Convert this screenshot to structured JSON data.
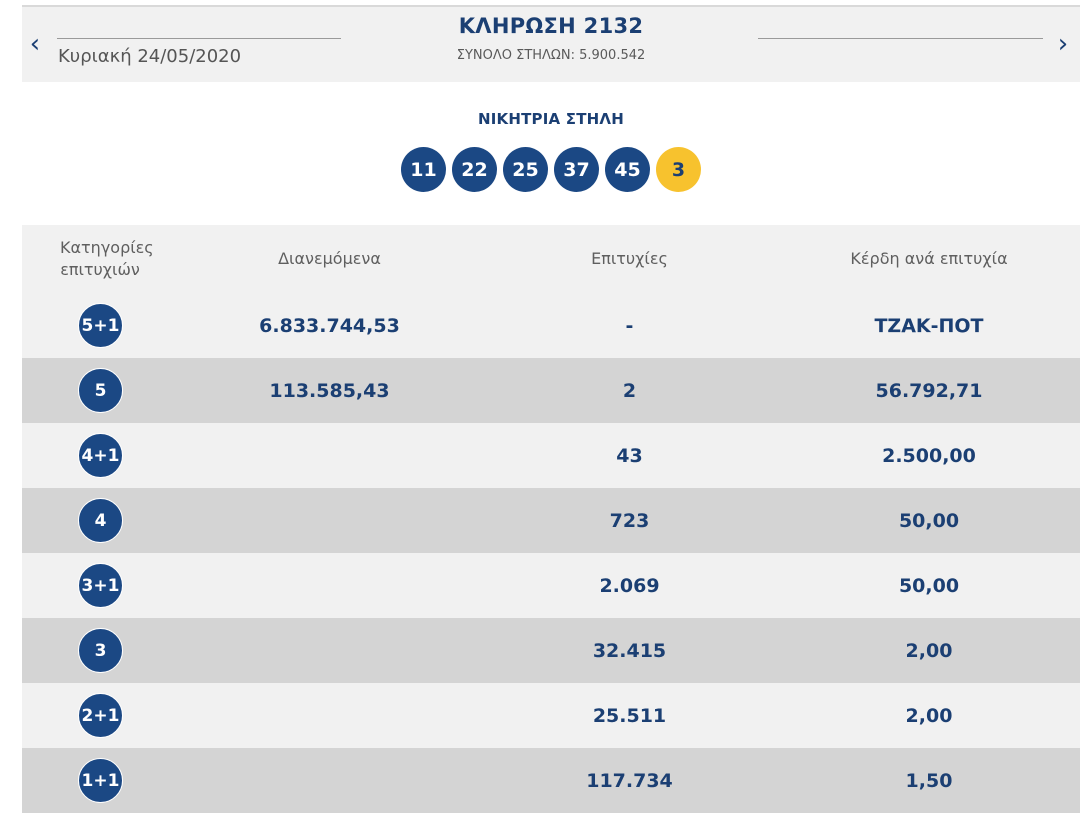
{
  "draw": {
    "title": "ΚΛΗΡΩΣΗ 2132",
    "date": "Κυριακή 24/05/2020",
    "total_columns": "ΣΥΝΟΛΟ ΣΤΗΛΩΝ: 5.900.542",
    "prev_icon": "chevron-left-icon",
    "next_icon": "chevron-right-icon",
    "prev_glyph": "‹",
    "next_glyph": "›"
  },
  "winning": {
    "label": "ΝΙΚΗΤΡΙΑ ΣΤΗΛΗ",
    "numbers": [
      "11",
      "22",
      "25",
      "37",
      "45"
    ],
    "bonus": "3"
  },
  "table": {
    "headers": {
      "categories": "Κατηγορίες επιτυχιών",
      "distributed": "Διανεμόμενα",
      "winners": "Επιτυχίες",
      "prize": "Κέρδη ανά επιτυχία"
    },
    "rows": [
      {
        "category": "5+1",
        "distributed": "6.833.744,53",
        "winners": "-",
        "prize": "ΤΖΑΚ-ΠΟΤ"
      },
      {
        "category": "5",
        "distributed": "113.585,43",
        "winners": "2",
        "prize": "56.792,71"
      },
      {
        "category": "4+1",
        "distributed": "",
        "winners": "43",
        "prize": "2.500,00"
      },
      {
        "category": "4",
        "distributed": "",
        "winners": "723",
        "prize": "50,00"
      },
      {
        "category": "3+1",
        "distributed": "",
        "winners": "2.069",
        "prize": "50,00"
      },
      {
        "category": "3",
        "distributed": "",
        "winners": "32.415",
        "prize": "2,00"
      },
      {
        "category": "2+1",
        "distributed": "",
        "winners": "25.511",
        "prize": "2,00"
      },
      {
        "category": "1+1",
        "distributed": "",
        "winners": "117.734",
        "prize": "1,50"
      }
    ]
  },
  "colors": {
    "navy": "#1b3f73",
    "ball_blue": "#1b4884",
    "bonus_yellow": "#f7c22e",
    "row_light": "#f1f1f1",
    "row_dark": "#d4d4d4"
  }
}
